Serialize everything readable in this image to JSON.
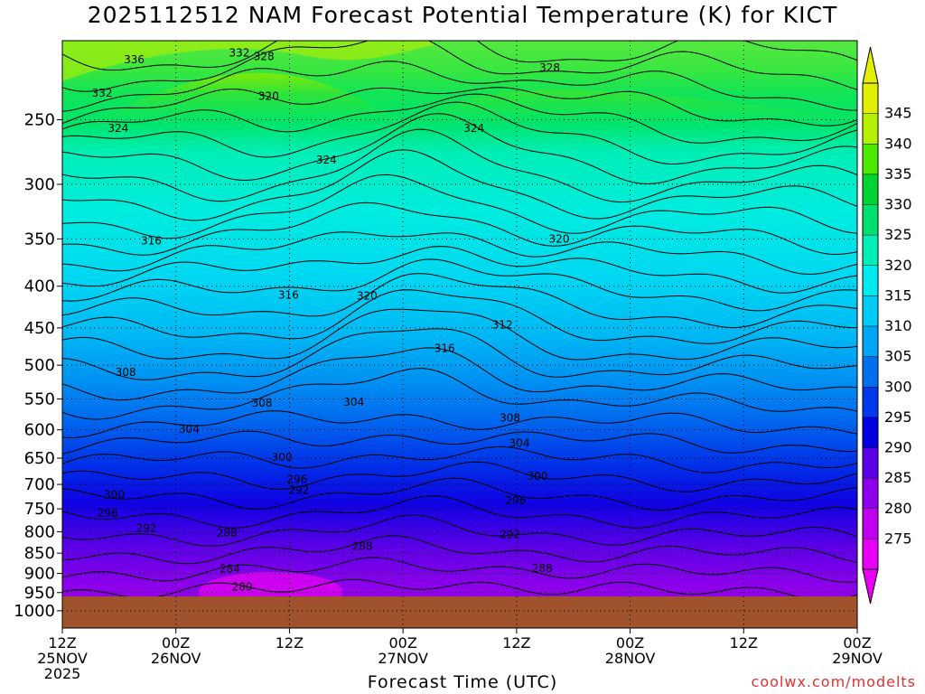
{
  "title": "2025112512 NAM Forecast Potential Temperature (K) for KICT",
  "credit": "coolwx.com/modelts",
  "chart_data": {
    "type": "contour",
    "title": "2025112512 NAM Forecast Potential Temperature (K) for KICT",
    "xlabel": "Forecast Time (UTC)",
    "ylabel": "",
    "y_scale": "log-pressure",
    "y_inverted": true,
    "grid": true,
    "y_ticks": [
      250,
      300,
      350,
      400,
      450,
      500,
      550,
      600,
      650,
      700,
      750,
      800,
      850,
      900,
      950,
      1000
    ],
    "x_ticks": [
      {
        "l1": "12Z",
        "l2": "25NOV",
        "l3": "2025"
      },
      {
        "l1": "00Z",
        "l2": "26NOV",
        "l3": ""
      },
      {
        "l1": "12Z",
        "l2": "",
        "l3": ""
      },
      {
        "l1": "00Z",
        "l2": "27NOV",
        "l3": ""
      },
      {
        "l1": "12Z",
        "l2": "",
        "l3": ""
      },
      {
        "l1": "00Z",
        "l2": "28NOV",
        "l3": ""
      },
      {
        "l1": "12Z",
        "l2": "",
        "l3": ""
      },
      {
        "l1": "00Z",
        "l2": "29NOV",
        "l3": ""
      }
    ],
    "colorbar": {
      "labels": [
        "345",
        "340",
        "335",
        "330",
        "325",
        "320",
        "315",
        "310",
        "305",
        "300",
        "295",
        "290",
        "285",
        "280",
        "275"
      ],
      "colors": [
        "#e2f000",
        "#b6ef00",
        "#4ee800",
        "#00d430",
        "#00e070",
        "#00eeb8",
        "#00eaf0",
        "#00cbf4",
        "#00a6f2",
        "#0070ee",
        "#0038ea",
        "#0000e0",
        "#5a00e6",
        "#8e00ea",
        "#c000ee",
        "#e800f4"
      ]
    },
    "contour_labels": [
      {
        "text": "336",
        "t": 7.6,
        "p": 211
      },
      {
        "text": "332",
        "t": 18.7,
        "p": 207
      },
      {
        "text": "328",
        "t": 21.3,
        "p": 209
      },
      {
        "text": "332",
        "t": 4.2,
        "p": 232
      },
      {
        "text": "328",
        "t": 51.5,
        "p": 216
      },
      {
        "text": "320",
        "t": 21.8,
        "p": 234
      },
      {
        "text": "324",
        "t": 5.9,
        "p": 256
      },
      {
        "text": "324",
        "t": 27.9,
        "p": 280
      },
      {
        "text": "324",
        "t": 43.5,
        "p": 256
      },
      {
        "text": "316",
        "t": 9.4,
        "p": 352
      },
      {
        "text": "320",
        "t": 52.5,
        "p": 350
      },
      {
        "text": "316",
        "t": 23.9,
        "p": 410
      },
      {
        "text": "320",
        "t": 32.2,
        "p": 411
      },
      {
        "text": "312",
        "t": 46.5,
        "p": 446
      },
      {
        "text": "316",
        "t": 40.4,
        "p": 477
      },
      {
        "text": "308",
        "t": 6.7,
        "p": 510
      },
      {
        "text": "308",
        "t": 21.1,
        "p": 556
      },
      {
        "text": "304",
        "t": 30.8,
        "p": 555
      },
      {
        "text": "308",
        "t": 47.3,
        "p": 580
      },
      {
        "text": "304",
        "t": 13.4,
        "p": 599
      },
      {
        "text": "304",
        "t": 48.3,
        "p": 623
      },
      {
        "text": "300",
        "t": 23.2,
        "p": 648
      },
      {
        "text": "300",
        "t": 50.2,
        "p": 684
      },
      {
        "text": "296",
        "t": 24.8,
        "p": 690
      },
      {
        "text": "292",
        "t": 25.0,
        "p": 712
      },
      {
        "text": "300",
        "t": 5.5,
        "p": 721
      },
      {
        "text": "296",
        "t": 47.9,
        "p": 733
      },
      {
        "text": "296",
        "t": 4.8,
        "p": 759
      },
      {
        "text": "292",
        "t": 8.9,
        "p": 792
      },
      {
        "text": "288",
        "t": 17.4,
        "p": 803
      },
      {
        "text": "292",
        "t": 47.3,
        "p": 806
      },
      {
        "text": "288",
        "t": 31.7,
        "p": 834
      },
      {
        "text": "284",
        "t": 17.7,
        "p": 888
      },
      {
        "text": "288",
        "t": 50.7,
        "p": 887
      },
      {
        "text": "280",
        "t": 19.0,
        "p": 935
      }
    ],
    "x_range_hours": [
      0,
      84
    ],
    "ground_level_hpa": 972
  }
}
